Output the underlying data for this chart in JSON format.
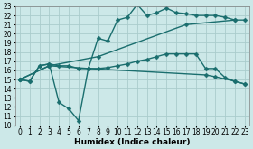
{
  "xlabel": "Humidex (Indice chaleur)",
  "ylabel": "",
  "xlim": [
    -0.5,
    23.5
  ],
  "ylim": [
    10,
    23
  ],
  "xticks": [
    0,
    1,
    2,
    3,
    4,
    5,
    6,
    7,
    8,
    9,
    10,
    11,
    12,
    13,
    14,
    15,
    16,
    17,
    18,
    19,
    20,
    21,
    22,
    23
  ],
  "yticks": [
    10,
    11,
    12,
    13,
    14,
    15,
    16,
    17,
    18,
    19,
    20,
    21,
    22,
    23
  ],
  "background_color": "#cce8e8",
  "grid_color": "#aacccc",
  "line_color": "#1a6e6e",
  "lines": [
    {
      "x": [
        0,
        1,
        2,
        3,
        4,
        5,
        6,
        7,
        8,
        9,
        10,
        11,
        12,
        13,
        14,
        15,
        16,
        17,
        18,
        19,
        20,
        21,
        22,
        23
      ],
      "y": [
        15,
        14.8,
        16.5,
        16.7,
        12.5,
        11.8,
        10.5,
        16.2,
        19.5,
        19.2,
        21.5,
        21.8,
        23.2,
        22.0,
        22.3,
        22.8,
        22.3,
        22.2,
        22.0,
        22.0,
        22.0,
        21.8,
        21.5,
        21.5
      ]
    },
    {
      "x": [
        0,
        1,
        2,
        3,
        4,
        5,
        6,
        7,
        8,
        9,
        10,
        11,
        12,
        13,
        14,
        15,
        16,
        17,
        18,
        19,
        20,
        21,
        22,
        23
      ],
      "y": [
        15,
        14.8,
        16.5,
        16.7,
        16.5,
        16.5,
        16.2,
        16.2,
        16.2,
        16.3,
        16.5,
        16.7,
        17.0,
        17.2,
        17.5,
        17.8,
        17.8,
        17.8,
        17.8,
        16.2,
        16.2,
        15.2,
        14.8,
        14.5
      ]
    },
    {
      "x": [
        0,
        3,
        8,
        17,
        22
      ],
      "y": [
        15,
        16.5,
        17.5,
        21.0,
        21.5
      ]
    },
    {
      "x": [
        0,
        3,
        7,
        19,
        20,
        22,
        23
      ],
      "y": [
        15,
        16.5,
        16.2,
        15.5,
        15.3,
        14.8,
        14.5
      ]
    }
  ],
  "marker": "D",
  "marker_size": 2.5,
  "line_width": 1.0,
  "tick_fontsize": 5.5,
  "xlabel_fontsize": 6.5
}
